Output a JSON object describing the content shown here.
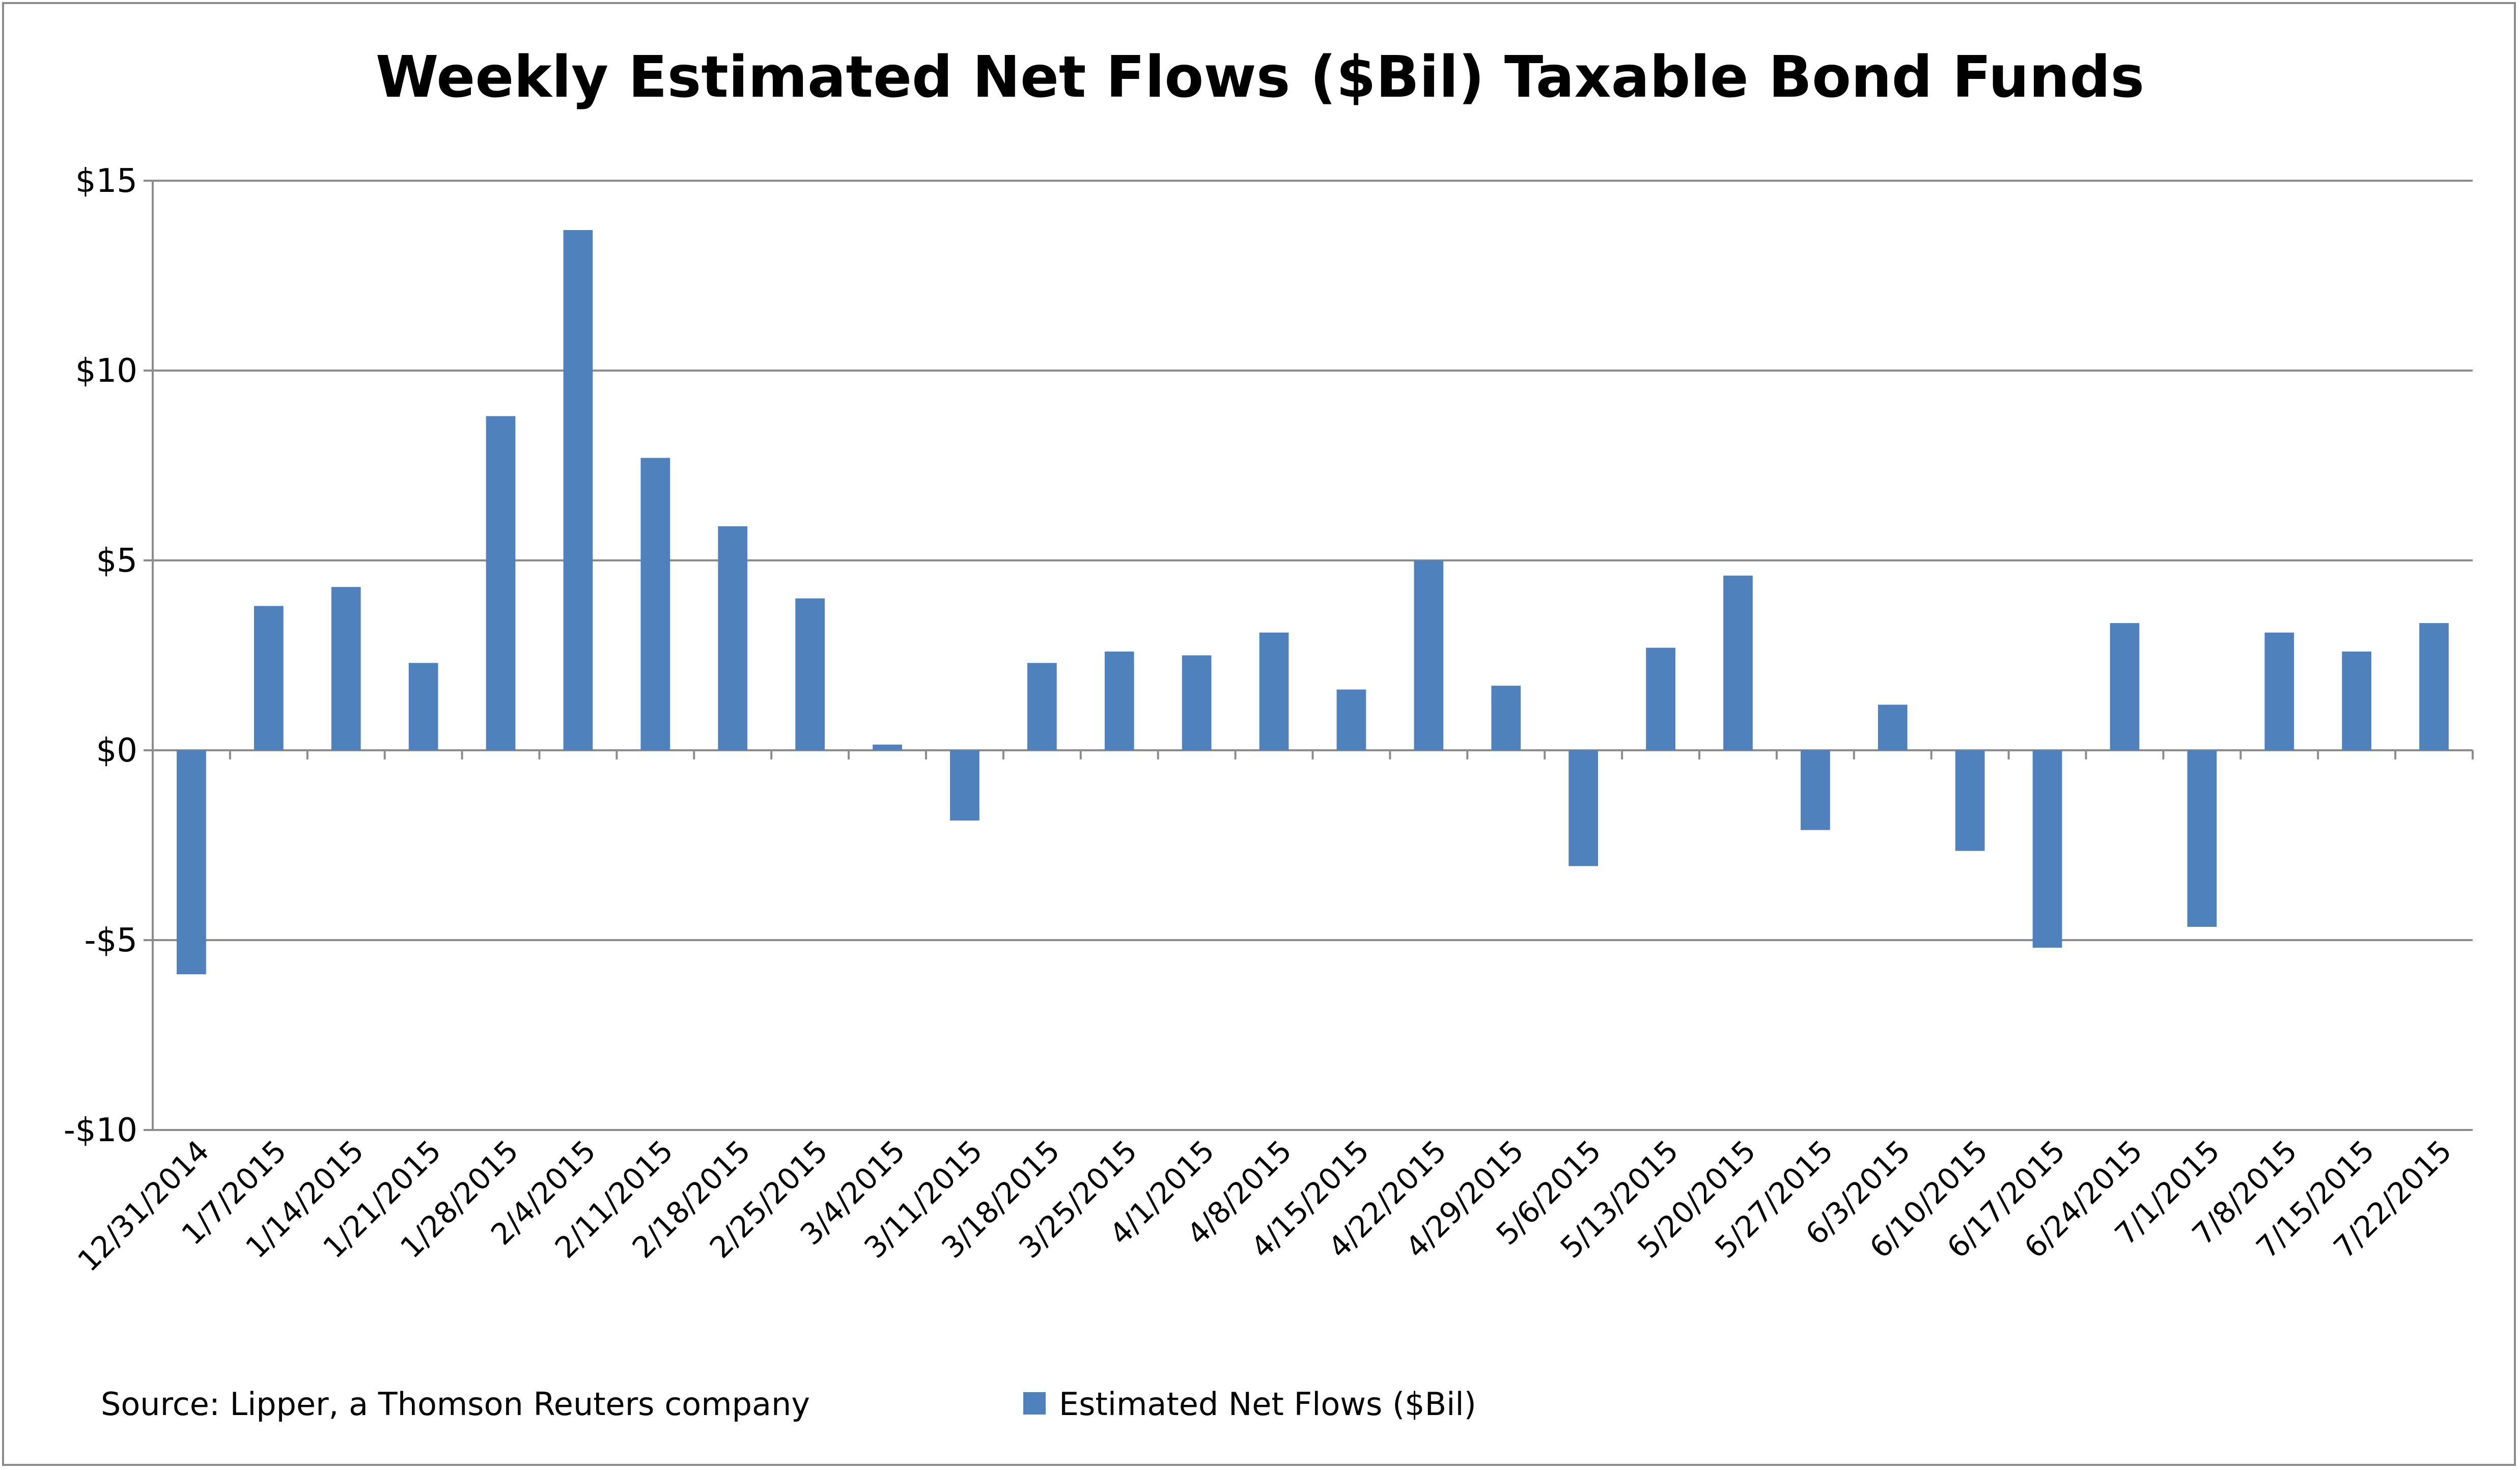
{
  "chart_data": {
    "type": "bar",
    "title": "Weekly Estimated Net Flows ($Bil) Taxable Bond Funds",
    "categories": [
      "12/31/2014",
      "1/7/2015",
      "1/14/2015",
      "1/21/2015",
      "1/28/2015",
      "2/4/2015",
      "2/11/2015",
      "2/18/2015",
      "2/25/2015",
      "3/4/2015",
      "3/11/2015",
      "3/18/2015",
      "3/25/2015",
      "4/1/2015",
      "4/8/2015",
      "4/15/2015",
      "4/22/2015",
      "4/29/2015",
      "5/6/2015",
      "5/13/2015",
      "5/20/2015",
      "5/27/2015",
      "6/3/2015",
      "6/10/2015",
      "6/17/2015",
      "6/24/2015",
      "7/1/2015",
      "7/8/2015",
      "7/15/2015",
      "7/22/2015"
    ],
    "series": [
      {
        "name": "Estimated Net Flows ($Bil)",
        "color": "#4F81BD",
        "values": [
          -5.9,
          3.8,
          4.3,
          2.3,
          8.8,
          13.7,
          7.7,
          5.9,
          4.0,
          0.15,
          -1.85,
          2.3,
          2.6,
          2.5,
          3.1,
          1.6,
          5.0,
          1.7,
          -3.05,
          2.7,
          4.6,
          -2.1,
          1.2,
          -2.65,
          -5.2,
          3.35,
          -4.65,
          3.1,
          2.6,
          3.35
        ]
      }
    ],
    "ylim": [
      -10,
      15
    ],
    "yticks": [
      -10,
      -5,
      0,
      5,
      10,
      15
    ],
    "ytick_labels": [
      "-$10",
      "-$5",
      "$0",
      "$5",
      "$10",
      "$15"
    ],
    "grid": true,
    "legend_position": "bottom"
  },
  "footer": {
    "source": "Source: Lipper, a Thomson Reuters company",
    "legend_label": "Estimated Net Flows ($Bil)"
  }
}
